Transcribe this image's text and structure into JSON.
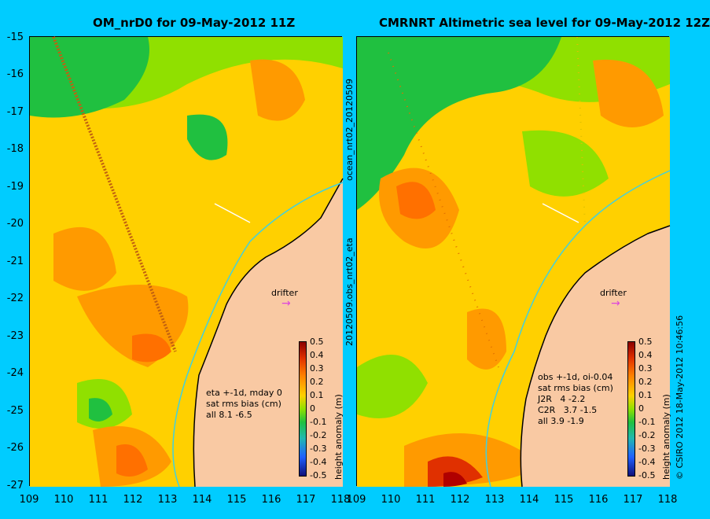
{
  "left_panel": {
    "title": "OM_nrD0 for 09-May-2012 11Z",
    "info_lines": [
      "eta +-1d, mday 0",
      "sat rms bias (cm)",
      "all 8.1 -6.5"
    ],
    "drifter_label": "drifter"
  },
  "right_panel": {
    "title": "CMRNRT Altimetric sea level  for 09-May-2012 12Z",
    "info_lines": [
      "obs +-1d, oi-0.04",
      "sat rms bias (cm)",
      "J2R   4 -2.2",
      "C2R   3.7 -1.5",
      "all 3.9 -1.9"
    ],
    "drifter_label": "drifter"
  },
  "side_text_top": "ocean_nrt02_20120509",
  "side_text_bottom": "20120509.obs_nrt02_eta",
  "right_side_text": "© CSIRO 2012  18-May-2012 10:46:56",
  "y_ticks": [
    "-15",
    "-16",
    "-17",
    "-18",
    "-19",
    "-20",
    "-21",
    "-22",
    "-23",
    "-24",
    "-25",
    "-26",
    "-27"
  ],
  "x_ticks": [
    "109",
    "110",
    "111",
    "112",
    "113",
    "114",
    "115",
    "116",
    "117",
    "118"
  ],
  "colorbar": {
    "ticks": [
      "0.5",
      "0.4",
      "0.3",
      "0.2",
      "0.1",
      "0",
      "-0.1",
      "-0.2",
      "-0.3",
      "-0.4",
      "-0.5"
    ],
    "label": "height anomaly (m)",
    "range": [
      -0.5,
      0.5
    ]
  },
  "colors": {
    "background": "#00ccff",
    "land": "#f9c9a3",
    "current_arrow": "#dd44dd",
    "coastline_ref": "#40d0e0"
  }
}
